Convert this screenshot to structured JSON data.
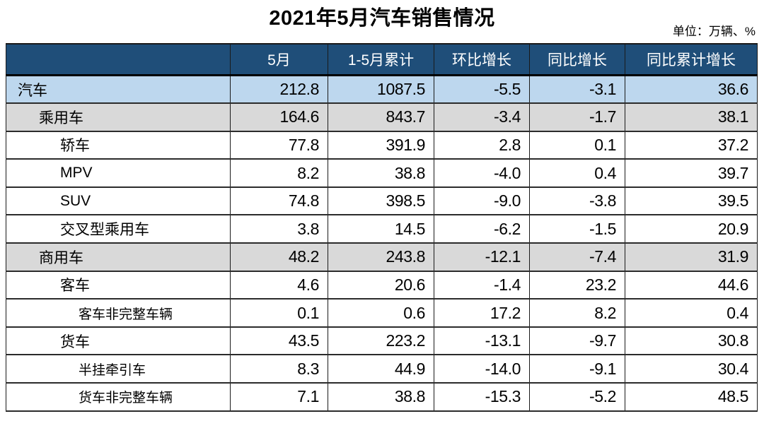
{
  "unit_note": "单位：万辆、%",
  "colors": {
    "header_bg": "#1F4E79",
    "header_text": "#FFFFFF",
    "row_blue": "#BDD7EE",
    "row_gray": "#D9D9D9",
    "border": "#1A1A1A"
  },
  "chart_data": {
    "type": "table",
    "title": "2021年5月汽车销售情况",
    "unit": "万辆、%",
    "columns": [
      "",
      "5月",
      "1-5月累计",
      "环比增长",
      "同比增长",
      "同比累计增长"
    ],
    "rows": [
      {
        "label": "汽车",
        "indent": 1,
        "row_style": "total",
        "values": [
          212.8,
          1087.5,
          -5.5,
          -3.1,
          36.6
        ]
      },
      {
        "label": "乘用车",
        "indent": 2,
        "row_style": "subtotal",
        "values": [
          164.6,
          843.7,
          -3.4,
          -1.7,
          38.1
        ]
      },
      {
        "label": "轿车",
        "indent": 3,
        "row_style": "detail",
        "values": [
          77.8,
          391.9,
          2.8,
          0.1,
          37.2
        ]
      },
      {
        "label": "MPV",
        "indent": 3,
        "row_style": "detail",
        "values": [
          8.2,
          38.8,
          -4.0,
          0.4,
          39.7
        ]
      },
      {
        "label": "SUV",
        "indent": 3,
        "row_style": "detail",
        "values": [
          74.8,
          398.5,
          -9.0,
          -3.8,
          39.5
        ]
      },
      {
        "label": "交叉型乘用车",
        "indent": 3,
        "row_style": "detail",
        "values": [
          3.8,
          14.5,
          -6.2,
          -1.5,
          20.9
        ]
      },
      {
        "label": "商用车",
        "indent": 2,
        "row_style": "subtotal",
        "values": [
          48.2,
          243.8,
          -12.1,
          -7.4,
          31.9
        ]
      },
      {
        "label": "客车",
        "indent": 3,
        "row_style": "detail",
        "values": [
          4.6,
          20.6,
          -1.4,
          23.2,
          44.6
        ]
      },
      {
        "label": "客车非完整车辆",
        "indent": 4,
        "row_style": "detail",
        "values": [
          0.1,
          0.6,
          17.2,
          8.2,
          0.4
        ]
      },
      {
        "label": "货车",
        "indent": 3,
        "row_style": "detail",
        "values": [
          43.5,
          223.2,
          -13.1,
          -9.7,
          30.8
        ]
      },
      {
        "label": "半挂牵引车",
        "indent": 4,
        "row_style": "detail",
        "values": [
          8.3,
          44.9,
          -14.0,
          -9.1,
          30.4
        ]
      },
      {
        "label": "货车非完整车辆",
        "indent": 4,
        "row_style": "detail",
        "values": [
          7.1,
          38.8,
          -15.3,
          -5.2,
          48.5
        ]
      }
    ]
  }
}
